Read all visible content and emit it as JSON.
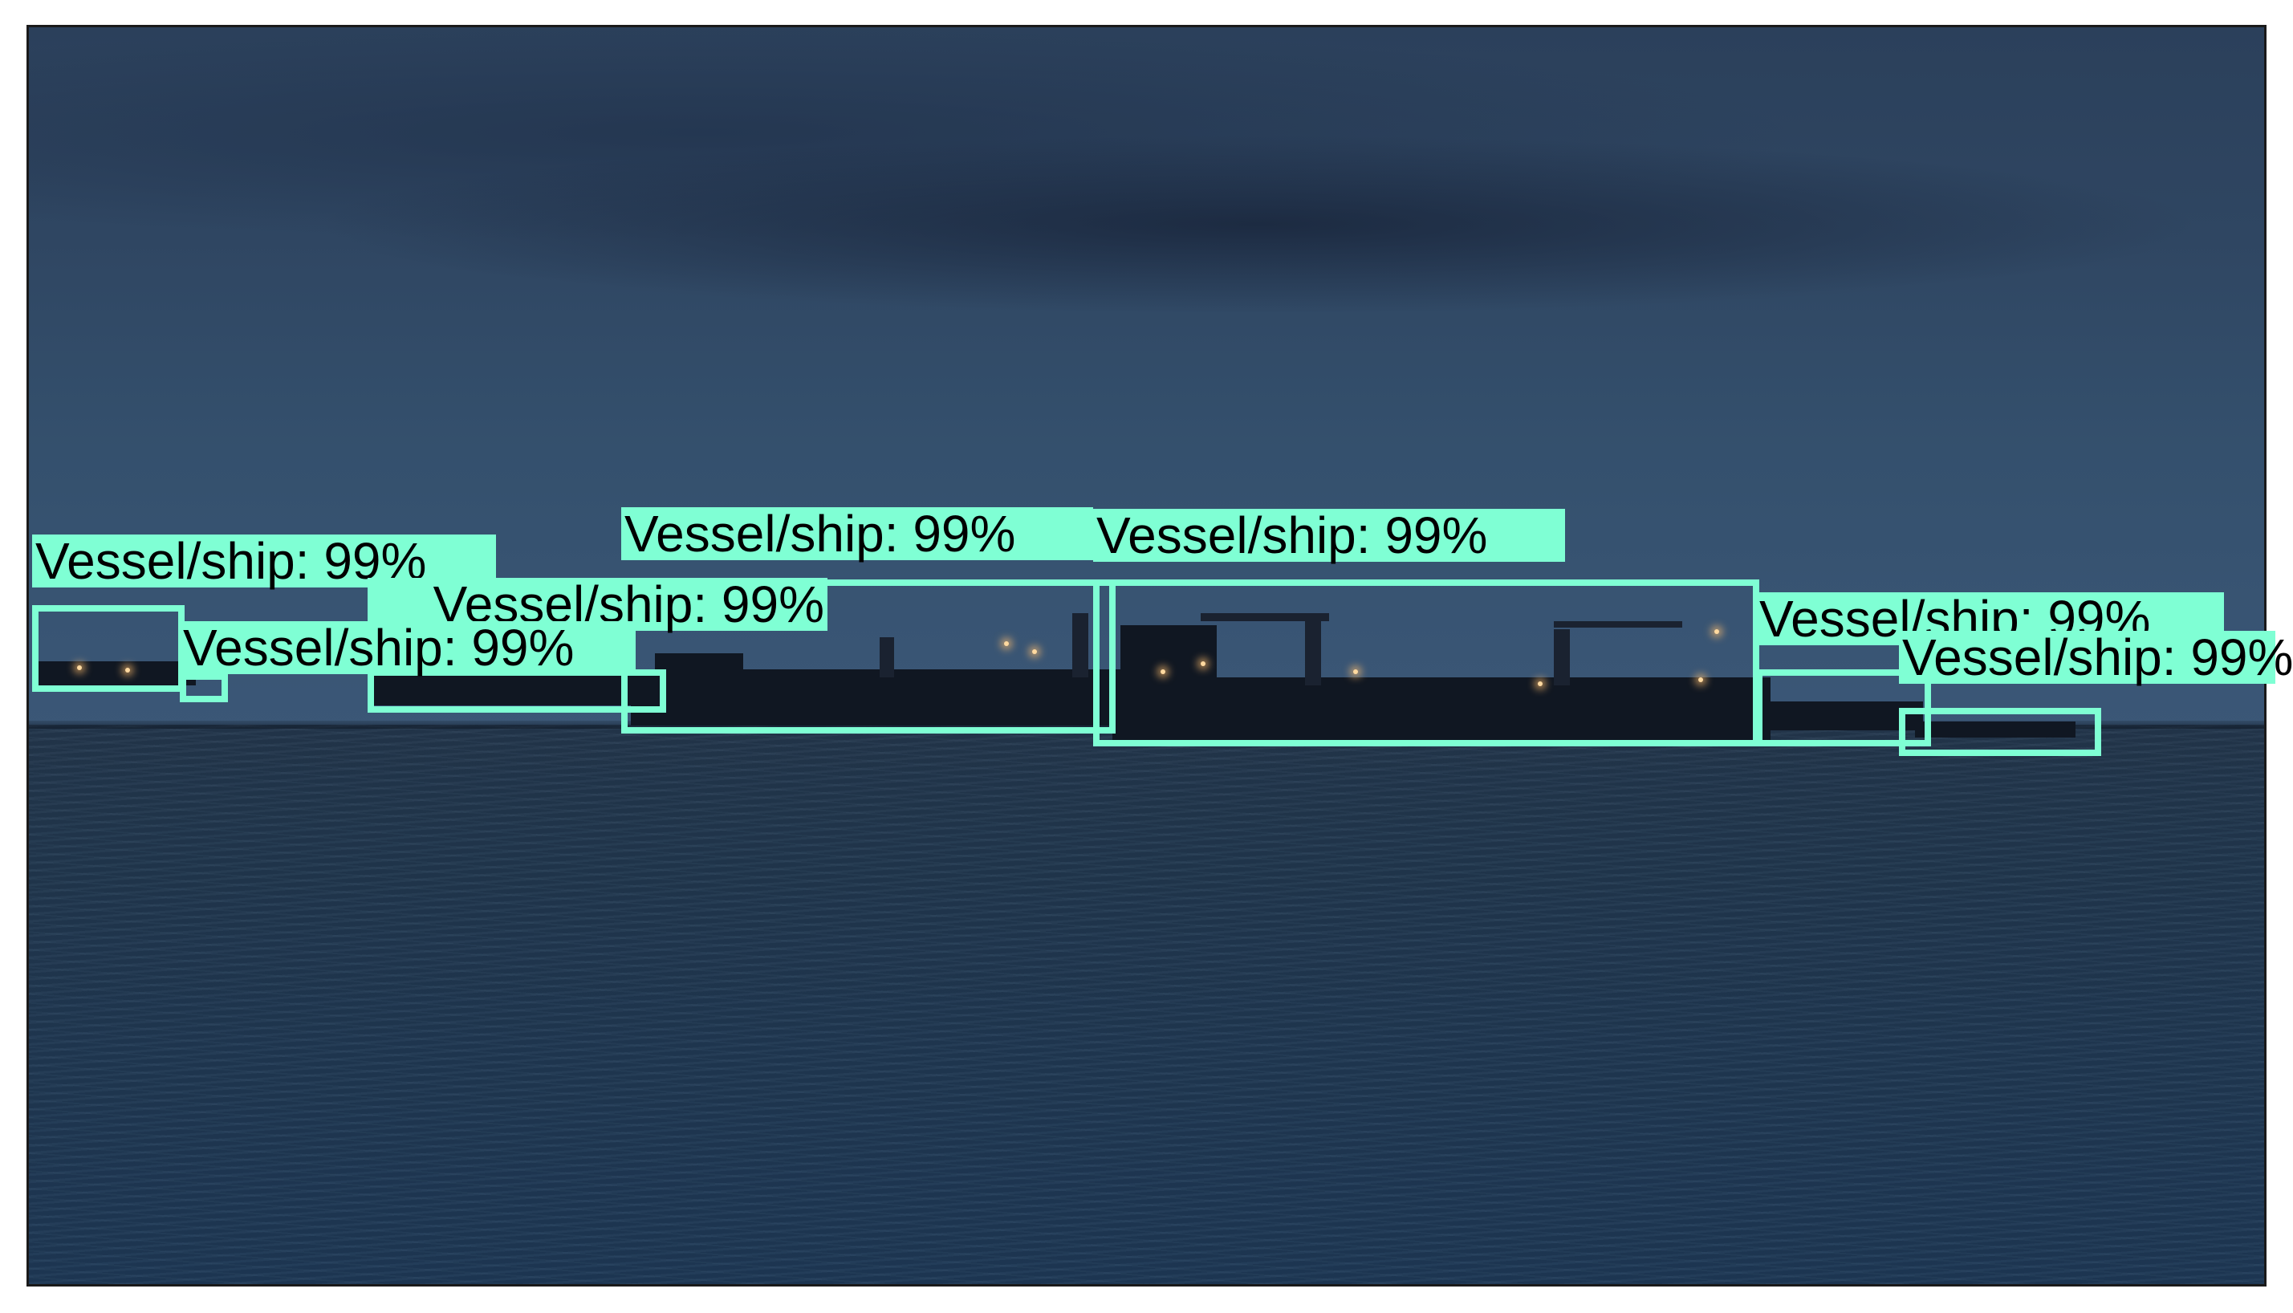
{
  "detections": [
    {
      "label": "Vessel/ship: 99%"
    },
    {
      "label": "Vessel/ship: 99%"
    },
    {
      "label": "Vessel/ship: 99%"
    },
    {
      "label": "Vessel/ship: 99%"
    },
    {
      "label": "Vessel/ship: 99%"
    },
    {
      "label": "Vessel/ship: 99%"
    },
    {
      "label": "Vessel/ship: 99%"
    }
  ],
  "colors": {
    "box": "#7fffd4",
    "label_text": "#000000",
    "frame": "#1a1a1a"
  }
}
